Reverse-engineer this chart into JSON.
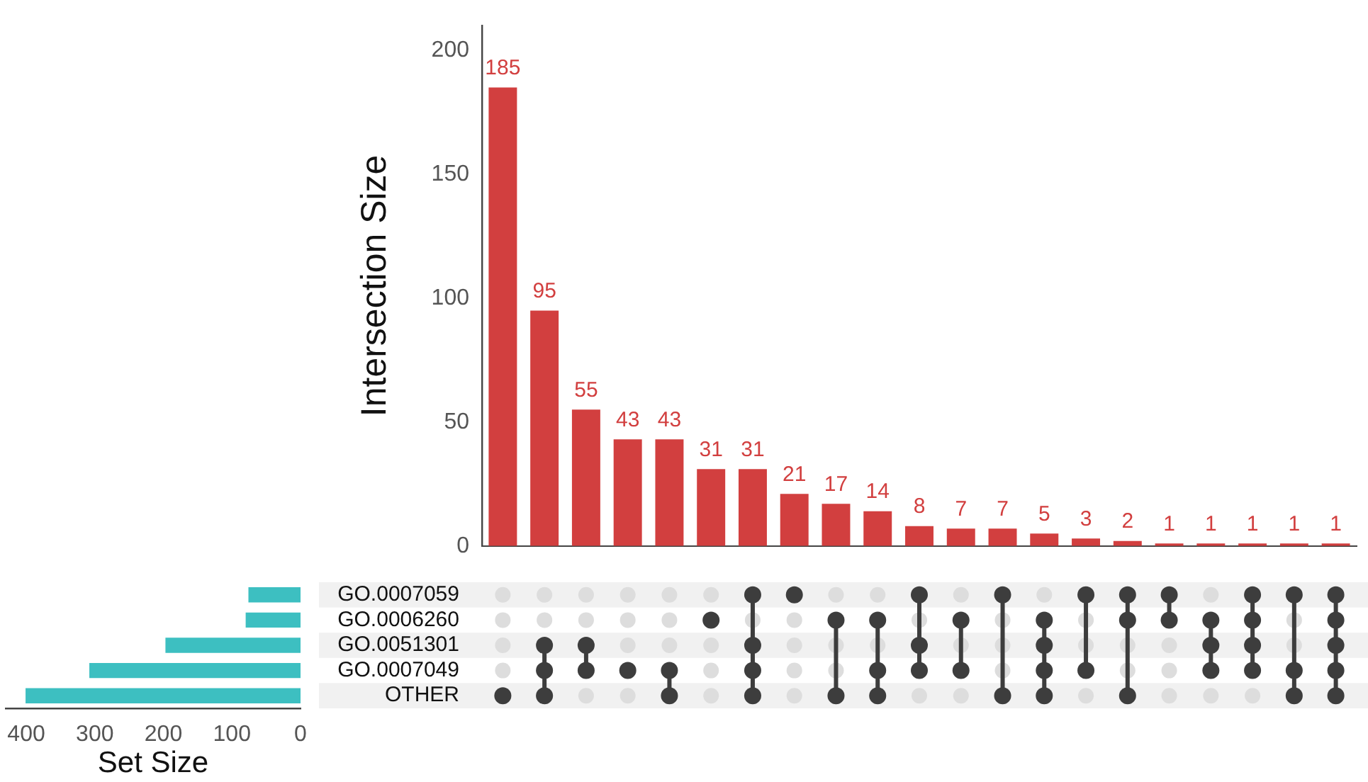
{
  "chart_data": [
    {
      "type": "bar",
      "ylabel": "Intersection Size",
      "categories": [
        null,
        null,
        null,
        null,
        null,
        null,
        null,
        null,
        null,
        null,
        null,
        null,
        null,
        null,
        null,
        null,
        null,
        null,
        null,
        null,
        null
      ],
      "values": [
        185,
        95,
        55,
        43,
        43,
        31,
        31,
        21,
        17,
        14,
        8,
        7,
        7,
        5,
        3,
        2,
        1,
        1,
        1,
        1,
        1
      ],
      "color": "#d23f3f",
      "ylim": [
        0,
        210
      ],
      "yticks": [
        0,
        50,
        100,
        150,
        200
      ],
      "data_labels": true,
      "tick_labels": "y",
      "grid": false,
      "legend": false
    },
    {
      "type": "bar",
      "orientation": "horizontal",
      "xlabel": "Set Size",
      "categories": [
        "GO.0007059",
        "GO.0006260",
        "GO.0051301",
        "GO.0007049",
        "OTHER"
      ],
      "values": [
        76,
        80,
        197,
        308,
        401
      ],
      "color": "#3dbfc1",
      "xlim": [
        430,
        0
      ],
      "xticks": [
        400,
        300,
        200,
        100,
        0
      ],
      "grid": false,
      "legend": false
    }
  ]
}
